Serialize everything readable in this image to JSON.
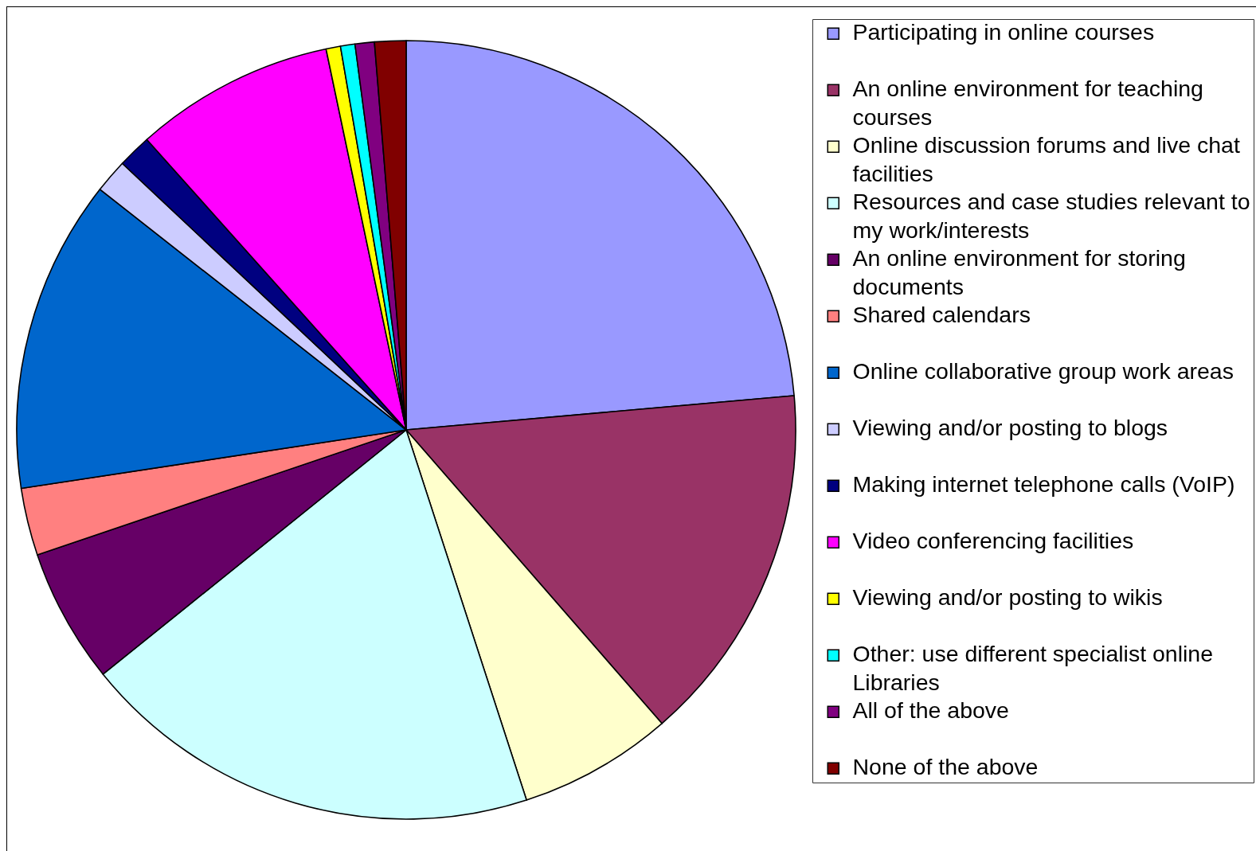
{
  "chart_data": {
    "type": "pie",
    "categories": [
      "Participating in online courses",
      "An online environment for teaching courses",
      "Online discussion forums and live chat facilities",
      "Resources and case studies relevant to my work/interests",
      "An online environment for storing documents",
      "Shared calendars",
      "Online collaborative group work areas",
      "Viewing and/or posting to blogs",
      "Making internet telephone calls (VoIP)",
      "Video conferencing facilities",
      "Viewing and/or posting to wikis",
      "Other: use different specialist online Libraries",
      "All of the above",
      "None of the above"
    ],
    "values": [
      23.6,
      15.0,
      6.4,
      19.2,
      5.6,
      2.8,
      13.0,
      1.4,
      1.4,
      8.3,
      0.6,
      0.6,
      0.8,
      1.3
    ],
    "colors": [
      "#9999ff",
      "#993366",
      "#ffffcc",
      "#ccffff",
      "#660066",
      "#ff8080",
      "#0066cc",
      "#ccccff",
      "#000080",
      "#ff00ff",
      "#ffff00",
      "#00ffff",
      "#800080",
      "#800000"
    ],
    "legend": "right"
  }
}
